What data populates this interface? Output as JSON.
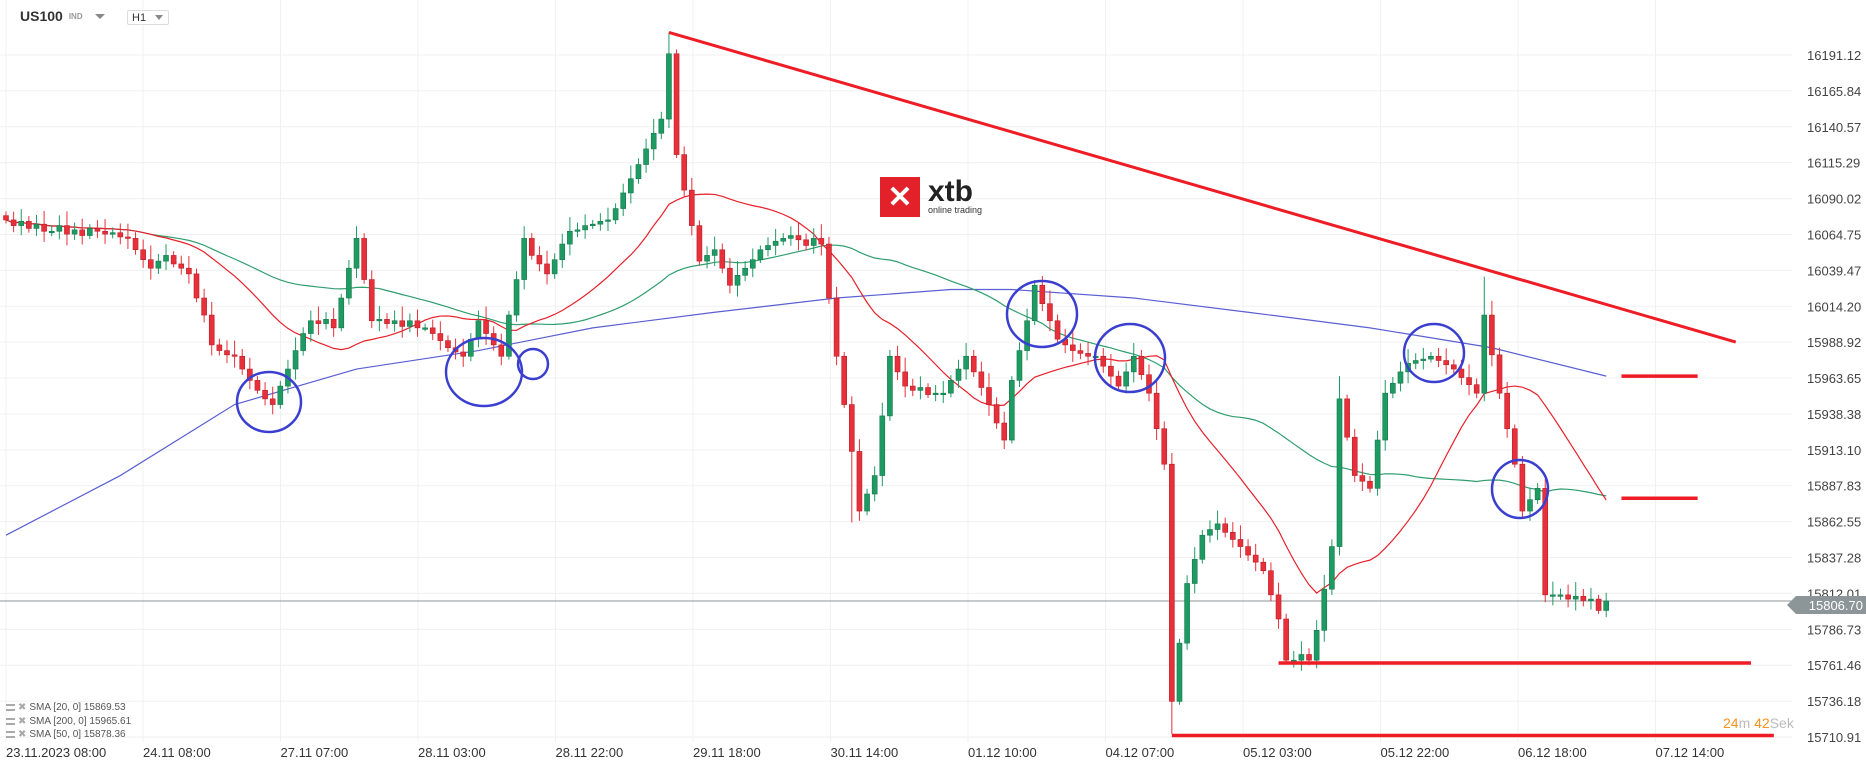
{
  "header": {
    "symbol": "US100",
    "symbol_type": "IND",
    "timeframe": "H1"
  },
  "logo": {
    "mark": "✕",
    "brand": "xtb",
    "tagline": "online trading"
  },
  "legend": [
    {
      "label": "SMA [20, 0] 15869.53"
    },
    {
      "label": "SMA [200, 0] 15965.61"
    },
    {
      "label": "SMA [50, 0] 15878.36"
    }
  ],
  "current_price": "15806.70",
  "countdown": {
    "min": "24",
    "min_unit": "m",
    "sec": "42",
    "sec_unit": "Sek"
  },
  "colors": {
    "up": "#1e9b63",
    "down": "#e8303a",
    "sma20": "#e8202a",
    "sma50": "#2f9e6e",
    "sma200": "#5a5fd2",
    "annotation": "#3a3fd0",
    "drawing": "#ee1c25"
  },
  "chart_data": {
    "type": "candlestick",
    "ylim": [
      15710.91,
      16191.12
    ],
    "y_ticks": [
      "16191.12",
      "16165.84",
      "16140.57",
      "16115.29",
      "16090.02",
      "16064.75",
      "16039.47",
      "16014.20",
      "15988.92",
      "15963.65",
      "15938.38",
      "15913.10",
      "15887.83",
      "15862.55",
      "15837.28",
      "15812.01",
      "15786.73",
      "15761.46",
      "15736.18",
      "15710.91"
    ],
    "x_ticks": [
      "23.11.2023  08:00",
      "24.11  08:00",
      "27.11  07:00",
      "28.11  03:00",
      "28.11  22:00",
      "29.11  18:00",
      "30.11  14:00",
      "01.12  10:00",
      "04.12  07:00",
      "05.12  03:00",
      "05.12  22:00",
      "06.12  18:00",
      "07.12  14:00"
    ],
    "closes": [
      16075,
      16071,
      16074,
      16069,
      16072,
      16067,
      16067,
      16071,
      16065,
      16068,
      16064,
      16069,
      16067,
      16065,
      16066,
      16063,
      16062,
      16054,
      16047,
      16041,
      16046,
      16050,
      16044,
      16041,
      16037,
      16020,
      16008,
      15987,
      15983,
      15980,
      15979,
      15970,
      15962,
      15955,
      15949,
      15945,
      15958,
      15970,
      15983,
      15995,
      16004,
      16002,
      16005,
      15999,
      16020,
      16041,
      16062,
      16033,
      16004,
      16005,
      16002,
      16004,
      16000,
      16004,
      15999,
      15999,
      15995,
      15990,
      15985,
      15982,
      15979,
      15991,
      16004,
      15995,
      15987,
      15979,
      16008,
      16033,
      16062,
      16050,
      16044,
      16037,
      16047,
      16058,
      16067,
      16068,
      16071,
      16072,
      16074,
      16075,
      16083,
      16094,
      16104,
      16114,
      16125,
      16136,
      16146,
      16192,
      16121,
      16096,
      16071,
      16046,
      16050,
      16054,
      16041,
      16029,
      16036,
      16041,
      16047,
      16054,
      16057,
      16060,
      16062,
      16064,
      16061,
      16057,
      16062,
      16058,
      16020,
      15979,
      15945,
      15912,
      15870,
      15882,
      15895,
      15937,
      15979,
      15968,
      15958,
      15955,
      15957,
      15952,
      15953,
      15953,
      15962,
      15970,
      15979,
      15968,
      15957,
      15945,
      15932,
      15920,
      15962,
      15983,
      16004,
      16029,
      16016,
      16004,
      15991,
      15987,
      15983,
      15981,
      15979,
      15979,
      15972,
      15965,
      15958,
      15968,
      15979,
      15966,
      15953,
      15928,
      15903,
      15736,
      15777,
      15819,
      15836,
      15853,
      15857,
      15861,
      15855,
      15850,
      15845,
      15839,
      15834,
      15828,
      15811,
      15794,
      15765,
      15765,
      15769,
      15765,
      15786,
      15815,
      15845,
      15949,
      15922,
      15895,
      15891,
      15886,
      15920,
      15953,
      15960,
      15968,
      15974,
      15976,
      15977,
      15979,
      15976,
      15973,
      15970,
      15964,
      15959,
      15953,
      16008,
      15980,
      15953,
      15928,
      15903,
      15870,
      15878,
      15886,
      15811,
      15811,
      15811,
      15808,
      15810,
      15807,
      15808,
      15800,
      15806.7
    ],
    "extremes": {
      "87": {
        "high": 16207
      },
      "111": {
        "low": 15862
      },
      "153": {
        "low": 15713
      },
      "175": {
        "high": 15965
      },
      "194": {
        "high": 16035
      },
      "168": {
        "low": 15762
      }
    },
    "sma200_points": [
      [
        0,
        15853
      ],
      [
        15,
        15895
      ],
      [
        30,
        15945
      ],
      [
        46,
        15970
      ],
      [
        62,
        15983
      ],
      [
        77,
        15999
      ],
      [
        93,
        16010
      ],
      [
        109,
        16020
      ],
      [
        124,
        16026
      ],
      [
        132,
        16026
      ],
      [
        148,
        16020
      ],
      [
        163,
        16010
      ],
      [
        179,
        15999
      ],
      [
        195,
        15985
      ],
      [
        210,
        15965
      ]
    ],
    "trendline": [
      [
        87,
        16207
      ],
      [
        227,
        15989
      ]
    ],
    "levels": [
      {
        "price": 15965,
        "from": 212,
        "to": 222
      },
      {
        "price": 15879,
        "from": 212,
        "to": 222
      },
      {
        "price": 15763,
        "from": 167,
        "to": 229
      },
      {
        "price": 15712,
        "from": 153,
        "to": 232
      }
    ]
  }
}
